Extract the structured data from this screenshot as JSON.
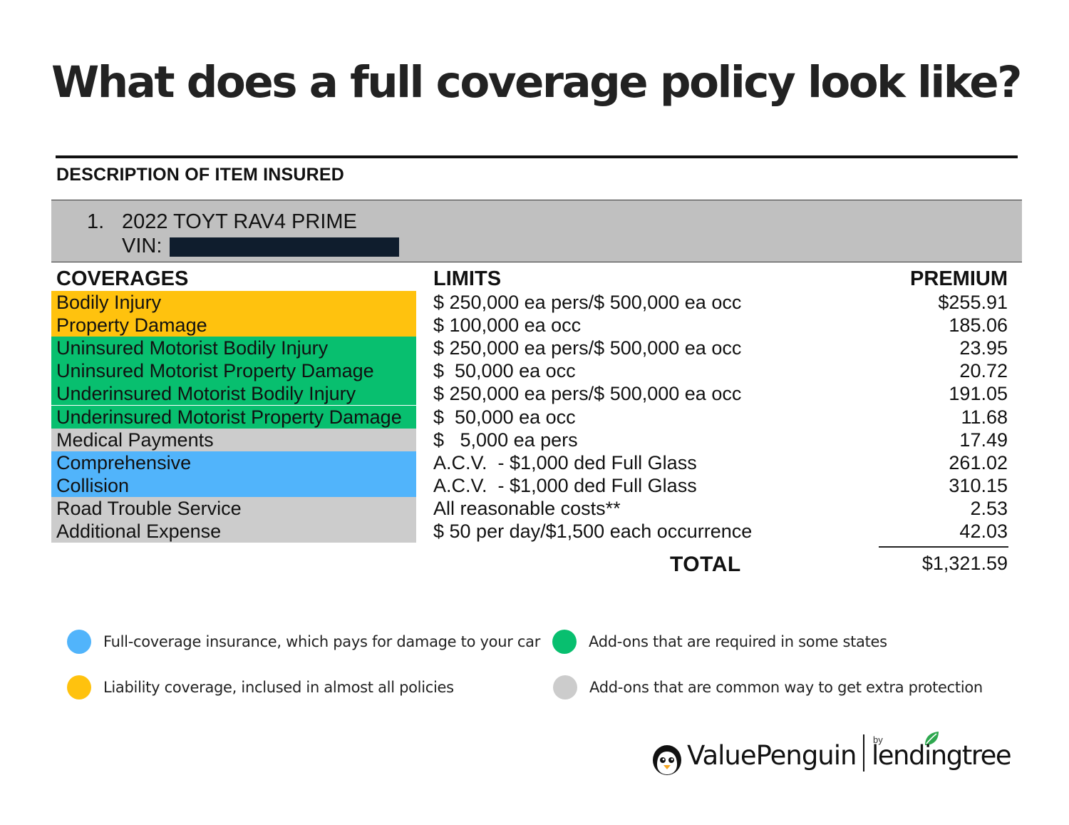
{
  "title": "What does a full coverage policy look like?",
  "section_heading": "DESCRIPTION OF ITEM INSURED",
  "vehicle": {
    "number": "1.",
    "name": "2022 TOYT RAV4 PRIME",
    "vin_label": "VIN:"
  },
  "headers": {
    "coverages": "COVERAGES",
    "limits": "LIMITS",
    "premium": "PREMIUM"
  },
  "colors": {
    "liability": "#ffc20e",
    "required": "#08bf6f",
    "extra": "#cccccc",
    "full": "#51b4fb"
  },
  "rows": [
    {
      "coverage": "Bodily Injury",
      "limit": "$ 250,000 ea pers/$ 500,000 ea occ",
      "premium": "$255.91",
      "category": "liability"
    },
    {
      "coverage": "Property Damage",
      "limit": "$ 100,000 ea occ",
      "premium": "185.06",
      "category": "liability"
    },
    {
      "coverage": "Uninsured Motorist Bodily Injury",
      "limit": "$ 250,000 ea pers/$ 500,000 ea occ",
      "premium": "23.95",
      "category": "required"
    },
    {
      "coverage": "Uninsured Motorist Property Damage",
      "limit": "$  50,000 ea occ",
      "premium": "20.72",
      "category": "required"
    },
    {
      "coverage": "Underinsured Motorist Bodily Injury",
      "limit": "$ 250,000 ea pers/$ 500,000 ea occ",
      "premium": "191.05",
      "category": "required"
    },
    {
      "coverage": "Underinsured Motorist Property Damage",
      "limit": "$  50,000 ea occ",
      "premium": "11.68",
      "category": "required"
    },
    {
      "coverage": "Medical Payments",
      "limit": "$   5,000 ea pers",
      "premium": "17.49",
      "category": "extra"
    },
    {
      "coverage": "Comprehensive",
      "limit": "A.C.V.  - $1,000 ded Full Glass",
      "premium": "261.02",
      "category": "full"
    },
    {
      "coverage": "Collision",
      "limit": "A.C.V.  - $1,000 ded Full Glass",
      "premium": "310.15",
      "category": "full"
    },
    {
      "coverage": "Road Trouble Service",
      "limit": "All reasonable costs**",
      "premium": "2.53",
      "category": "extra"
    },
    {
      "coverage": "Additional Expense",
      "limit": "$ 50 per day/$1,500 each occurrence",
      "premium": "42.03",
      "category": "extra"
    }
  ],
  "total": {
    "label": "TOTAL",
    "value": "$1,321.59"
  },
  "legend": {
    "full": "Full-coverage insurance, which pays for damage to your car",
    "required": "Add-ons that are required in some states",
    "liability": "Liability coverage, inclused in almost all policies",
    "extra": "Add-ons that are common way to get extra protection"
  },
  "logo": {
    "brand": "ValuePenguin",
    "by": "by",
    "partner": "lendingtree",
    "icons": [
      "penguin-icon",
      "leaf-icon"
    ]
  }
}
